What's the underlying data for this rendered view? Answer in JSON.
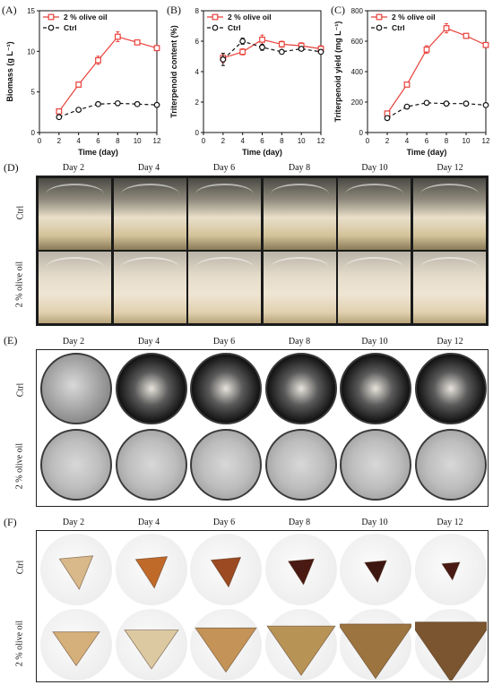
{
  "panels": {
    "A": {
      "tag": "(A)"
    },
    "B": {
      "tag": "(B)"
    },
    "C": {
      "tag": "(C)"
    },
    "D": {
      "tag": "(D)"
    },
    "E": {
      "tag": "(E)"
    },
    "F": {
      "tag": "(F)"
    }
  },
  "photo_rows": {
    "ctrl": "Ctrl",
    "oil": "2 % olive oil"
  },
  "days": [
    "Day 2",
    "Day 4",
    "Day 6",
    "Day 8",
    "Day 10",
    "Day 12"
  ],
  "colors": {
    "oil": "#e8413a",
    "ctrl": "#111111"
  },
  "chart_data": [
    {
      "type": "line",
      "x": [
        2,
        4,
        6,
        8,
        10,
        12
      ],
      "xlabel": "Time (day)",
      "ylabel": "Biomass (g L⁻¹)",
      "xlim": [
        0,
        12
      ],
      "ylim": [
        0,
        15
      ],
      "xticks": [
        0,
        2,
        4,
        6,
        8,
        10,
        12
      ],
      "yticks": [
        0,
        5,
        10,
        15
      ],
      "legend": "top-left",
      "series": [
        {
          "name": "2 % olive oil",
          "values": [
            2.6,
            5.9,
            8.9,
            11.8,
            11.1,
            10.4
          ],
          "err": [
            0.2,
            0.3,
            0.5,
            0.6,
            0.3,
            0.3
          ]
        },
        {
          "name": "Ctrl",
          "values": [
            1.9,
            2.8,
            3.5,
            3.6,
            3.5,
            3.4
          ],
          "err": [
            0.1,
            0.1,
            0.2,
            0.2,
            0.1,
            0.1
          ]
        }
      ]
    },
    {
      "type": "line",
      "x": [
        2,
        4,
        6,
        8,
        10,
        12
      ],
      "xlabel": "Time (day)",
      "ylabel": "Triterpenoid content (%)",
      "xlim": [
        0,
        12
      ],
      "ylim": [
        0,
        8
      ],
      "xticks": [
        0,
        2,
        4,
        6,
        8,
        10,
        12
      ],
      "yticks": [
        0,
        2,
        4,
        6,
        8
      ],
      "legend": "top-left",
      "series": [
        {
          "name": "2 % olive oil",
          "values": [
            4.9,
            5.3,
            6.1,
            5.8,
            5.7,
            5.5
          ],
          "err": [
            0.3,
            0.2,
            0.3,
            0.2,
            0.2,
            0.2
          ]
        },
        {
          "name": "Ctrl",
          "values": [
            4.8,
            6.0,
            5.6,
            5.3,
            5.5,
            5.3
          ],
          "err": [
            0.4,
            0.2,
            0.2,
            0.1,
            0.1,
            0.1
          ]
        }
      ]
    },
    {
      "type": "line",
      "x": [
        2,
        4,
        6,
        8,
        10,
        12
      ],
      "xlabel": "Time (day)",
      "ylabel": "Triterpenoid yield (mg L⁻¹)",
      "xlim": [
        0,
        12
      ],
      "ylim": [
        0,
        800
      ],
      "xticks": [
        0,
        2,
        4,
        6,
        8,
        10,
        12
      ],
      "yticks": [
        0,
        200,
        400,
        600,
        800
      ],
      "legend": "top-left",
      "series": [
        {
          "name": "2 % olive oil",
          "values": [
            125,
            315,
            545,
            685,
            635,
            575
          ],
          "err": [
            10,
            15,
            25,
            30,
            15,
            15
          ]
        },
        {
          "name": "Ctrl",
          "values": [
            95,
            170,
            195,
            190,
            190,
            180
          ],
          "err": [
            5,
            8,
            8,
            8,
            6,
            6
          ]
        }
      ]
    }
  ]
}
